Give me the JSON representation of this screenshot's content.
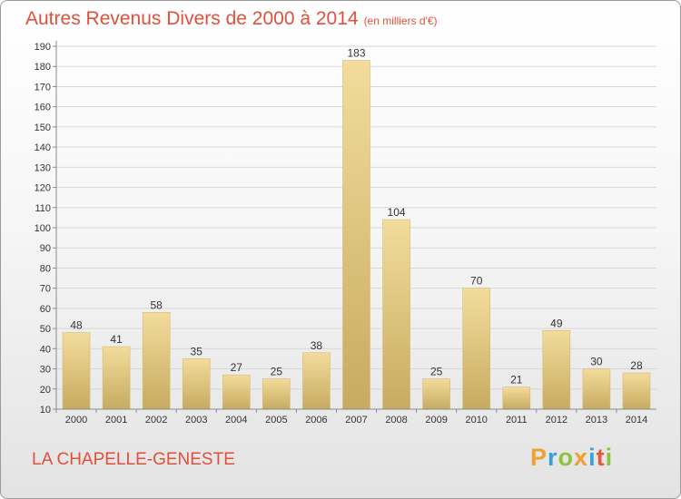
{
  "title": "Autres Revenus Divers de 2000 à 2014",
  "subtitle": "(en milliers d'€)",
  "place": "LA CHAPELLE-GENESTE",
  "logo": {
    "letters": [
      "P",
      "r",
      "o",
      "x",
      "i",
      "t",
      "i"
    ],
    "colors": [
      "#f0a030",
      "#3aa0d8",
      "#8cc43c",
      "#f0a030",
      "#3aa0d8",
      "#e05a3c",
      "#8cc43c"
    ]
  },
  "colors": {
    "title": "#e0503a",
    "bar_light": "#f3dc9c",
    "bar_dark": "#c6ab60",
    "axis": "#8a8a8a",
    "grid": "#d8d8d8"
  },
  "chart_data": {
    "type": "bar",
    "categories": [
      "2000",
      "2001",
      "2002",
      "2003",
      "2004",
      "2005",
      "2006",
      "2007",
      "2008",
      "2009",
      "2010",
      "2011",
      "2012",
      "2013",
      "2014"
    ],
    "values": [
      48,
      41,
      58,
      35,
      27,
      25,
      38,
      183,
      104,
      25,
      70,
      21,
      49,
      30,
      28
    ],
    "ylim": [
      10,
      190
    ],
    "yticks": [
      10,
      20,
      30,
      40,
      50,
      60,
      70,
      80,
      90,
      100,
      110,
      120,
      130,
      140,
      150,
      160,
      170,
      180,
      190
    ],
    "grid": true,
    "data_labels": true
  }
}
